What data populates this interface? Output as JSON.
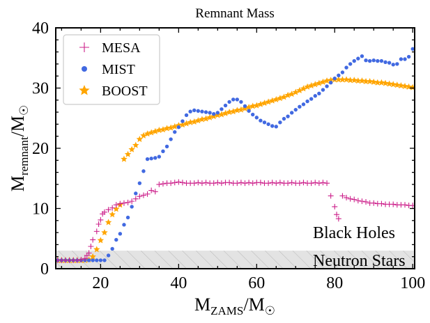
{
  "chart_data": {
    "type": "scatter",
    "title": "Remnant Mass",
    "xlabel": {
      "base": "M",
      "sub": "ZAMS",
      "mid": "/M",
      "sub2": "☉"
    },
    "ylabel": {
      "base": "M",
      "sub": "remnant",
      "mid": "/M",
      "sub2": "☉"
    },
    "xlim": [
      8.5,
      100.5
    ],
    "ylim": [
      0,
      40
    ],
    "xticks": [
      20,
      40,
      60,
      80,
      100
    ],
    "yticks": [
      0,
      10,
      20,
      30,
      40
    ],
    "legend_position": "top-left",
    "annotations": {
      "bh": "Black Holes",
      "ns": "Neutron Stars"
    },
    "ns_band": [
      0,
      3
    ],
    "series": [
      {
        "name": "MESA",
        "marker": "plus",
        "color": "#cc1f8a",
        "points": [
          [
            9,
            1.4
          ],
          [
            10,
            1.4
          ],
          [
            11,
            1.4
          ],
          [
            12,
            1.4
          ],
          [
            13,
            1.4
          ],
          [
            14,
            1.4
          ],
          [
            15,
            1.5
          ],
          [
            16,
            1.7
          ],
          [
            16.5,
            2.2
          ],
          [
            17,
            2.6
          ],
          [
            17.5,
            3.7
          ],
          [
            18,
            4.8
          ],
          [
            19,
            6.2
          ],
          [
            19.5,
            7.4
          ],
          [
            20,
            8.1
          ],
          [
            20.5,
            9.1
          ],
          [
            21,
            9.4
          ],
          [
            22,
            9.8
          ],
          [
            23,
            10.1
          ],
          [
            24,
            10.6
          ],
          [
            25,
            10.8
          ],
          [
            26,
            10.9
          ],
          [
            27,
            11.0
          ],
          [
            28,
            11.2
          ],
          [
            29,
            11.6
          ],
          [
            30,
            12.0
          ],
          [
            31,
            12.2
          ],
          [
            32,
            12.4
          ],
          [
            33,
            13.0
          ],
          [
            34,
            12.8
          ],
          [
            35,
            14.0
          ],
          [
            36,
            14.1
          ],
          [
            37,
            14.2
          ],
          [
            38,
            14.2
          ],
          [
            39,
            14.3
          ],
          [
            40,
            14.4
          ],
          [
            41,
            14.3
          ],
          [
            42,
            14.2
          ],
          [
            43,
            14.2
          ],
          [
            44,
            14.2
          ],
          [
            45,
            14.3
          ],
          [
            46,
            14.2
          ],
          [
            47,
            14.3
          ],
          [
            48,
            14.2
          ],
          [
            49,
            14.2
          ],
          [
            50,
            14.3
          ],
          [
            51,
            14.2
          ],
          [
            52,
            14.3
          ],
          [
            53,
            14.3
          ],
          [
            54,
            14.2
          ],
          [
            55,
            14.2
          ],
          [
            56,
            14.3
          ],
          [
            57,
            14.2
          ],
          [
            58,
            14.3
          ],
          [
            59,
            14.2
          ],
          [
            60,
            14.3
          ],
          [
            61,
            14.3
          ],
          [
            62,
            14.2
          ],
          [
            63,
            14.2
          ],
          [
            64,
            14.3
          ],
          [
            65,
            14.2
          ],
          [
            66,
            14.3
          ],
          [
            67,
            14.2
          ],
          [
            68,
            14.2
          ],
          [
            69,
            14.3
          ],
          [
            70,
            14.2
          ],
          [
            71,
            14.2
          ],
          [
            72,
            14.3
          ],
          [
            73,
            14.2
          ],
          [
            74,
            14.2
          ],
          [
            75,
            14.3
          ],
          [
            76,
            14.2
          ],
          [
            77,
            14.3
          ],
          [
            78,
            14.2
          ],
          [
            79,
            12.1
          ],
          [
            80,
            10.3
          ],
          [
            80.5,
            9.0
          ],
          [
            81,
            8.3
          ],
          [
            82,
            12.1
          ],
          [
            83,
            11.8
          ],
          [
            84,
            11.6
          ],
          [
            85,
            11.5
          ],
          [
            86,
            11.3
          ],
          [
            87,
            11.2
          ],
          [
            88,
            11.1
          ],
          [
            89,
            10.9
          ],
          [
            90,
            10.9
          ],
          [
            91,
            10.8
          ],
          [
            92,
            10.8
          ],
          [
            93,
            10.7
          ],
          [
            94,
            10.7
          ],
          [
            95,
            10.7
          ],
          [
            96,
            10.6
          ],
          [
            97,
            10.6
          ],
          [
            98,
            10.6
          ],
          [
            99,
            10.5
          ],
          [
            100,
            10.5
          ]
        ]
      },
      {
        "name": "MIST",
        "marker": "circle",
        "color": "#4169e1",
        "points": [
          [
            9,
            1.4
          ],
          [
            10,
            1.4
          ],
          [
            11,
            1.4
          ],
          [
            12,
            1.4
          ],
          [
            13,
            1.4
          ],
          [
            14,
            1.4
          ],
          [
            15,
            1.4
          ],
          [
            16,
            1.4
          ],
          [
            17,
            1.4
          ],
          [
            18,
            1.4
          ],
          [
            19,
            1.4
          ],
          [
            20,
            1.4
          ],
          [
            21,
            1.4
          ],
          [
            22,
            2.2
          ],
          [
            23,
            3.3
          ],
          [
            24,
            4.8
          ],
          [
            25,
            5.8
          ],
          [
            26,
            7.3
          ],
          [
            27,
            8.5
          ],
          [
            28,
            10.3
          ],
          [
            29,
            12.5
          ],
          [
            30,
            14.2
          ],
          [
            31,
            16.2
          ],
          [
            32,
            18.2
          ],
          [
            33,
            18.3
          ],
          [
            34,
            18.4
          ],
          [
            35,
            18.6
          ],
          [
            36,
            19.5
          ],
          [
            37,
            20.3
          ],
          [
            38,
            21.5
          ],
          [
            39,
            22.7
          ],
          [
            40,
            23.5
          ],
          [
            41,
            24.5
          ],
          [
            42,
            25.5
          ],
          [
            43,
            26.1
          ],
          [
            44,
            26.3
          ],
          [
            45,
            26.2
          ],
          [
            46,
            26.1
          ],
          [
            47,
            26.0
          ],
          [
            48,
            25.9
          ],
          [
            49,
            25.7
          ],
          [
            50,
            25.9
          ],
          [
            51,
            26.5
          ],
          [
            52,
            27.1
          ],
          [
            53,
            27.7
          ],
          [
            54,
            28.1
          ],
          [
            55,
            28.1
          ],
          [
            56,
            27.7
          ],
          [
            57,
            27.0
          ],
          [
            58,
            26.2
          ],
          [
            59,
            25.6
          ],
          [
            60,
            25.1
          ],
          [
            61,
            24.6
          ],
          [
            62,
            24.3
          ],
          [
            63,
            24.0
          ],
          [
            64,
            23.7
          ],
          [
            65,
            23.6
          ],
          [
            66,
            24.3
          ],
          [
            67,
            24.9
          ],
          [
            68,
            25.3
          ],
          [
            69,
            25.9
          ],
          [
            70,
            26.4
          ],
          [
            71,
            26.9
          ],
          [
            72,
            27.3
          ],
          [
            73,
            27.8
          ],
          [
            74,
            28.2
          ],
          [
            75,
            28.7
          ],
          [
            76,
            29.1
          ],
          [
            77,
            29.7
          ],
          [
            78,
            30.3
          ],
          [
            79,
            30.9
          ],
          [
            80,
            31.6
          ],
          [
            81,
            32.1
          ],
          [
            82,
            32.6
          ],
          [
            83,
            33.4
          ],
          [
            84,
            34.0
          ],
          [
            85,
            34.5
          ],
          [
            86,
            34.9
          ],
          [
            87,
            35.3
          ],
          [
            88,
            34.6
          ],
          [
            89,
            34.5
          ],
          [
            90,
            34.6
          ],
          [
            91,
            34.5
          ],
          [
            92,
            34.5
          ],
          [
            93,
            34.3
          ],
          [
            94,
            34.2
          ],
          [
            95,
            33.9
          ],
          [
            96,
            34.0
          ],
          [
            97,
            34.8
          ],
          [
            98,
            34.8
          ],
          [
            99,
            35.2
          ],
          [
            100,
            36.5
          ]
        ]
      },
      {
        "name": "BOOST",
        "marker": "star",
        "color": "#ffa500",
        "points": [
          [
            9,
            1.4
          ],
          [
            10,
            1.4
          ],
          [
            11,
            1.4
          ],
          [
            12,
            1.4
          ],
          [
            13,
            1.4
          ],
          [
            14,
            1.4
          ],
          [
            15,
            1.4
          ],
          [
            16,
            1.4
          ],
          [
            17,
            1.5
          ],
          [
            18,
            2.0
          ],
          [
            19,
            3.2
          ],
          [
            20,
            4.7
          ],
          [
            21,
            6.0
          ],
          [
            22,
            7.7
          ],
          [
            23,
            9.0
          ],
          [
            24,
            9.9
          ],
          [
            25,
            10.6
          ],
          [
            26,
            18.2
          ],
          [
            27,
            19.0
          ],
          [
            28,
            19.8
          ],
          [
            29,
            20.5
          ],
          [
            30,
            21.5
          ],
          [
            31,
            22.1
          ],
          [
            32,
            22.4
          ],
          [
            33,
            22.6
          ],
          [
            34,
            22.8
          ],
          [
            35,
            23.0
          ],
          [
            36,
            23.1
          ],
          [
            37,
            23.3
          ],
          [
            38,
            23.4
          ],
          [
            39,
            23.6
          ],
          [
            40,
            23.8
          ],
          [
            41,
            23.9
          ],
          [
            42,
            24.1
          ],
          [
            43,
            24.3
          ],
          [
            44,
            24.4
          ],
          [
            45,
            24.6
          ],
          [
            46,
            24.8
          ],
          [
            47,
            24.9
          ],
          [
            48,
            25.1
          ],
          [
            49,
            25.3
          ],
          [
            50,
            25.5
          ],
          [
            51,
            25.6
          ],
          [
            52,
            25.8
          ],
          [
            53,
            26.0
          ],
          [
            54,
            26.1
          ],
          [
            55,
            26.3
          ],
          [
            56,
            26.4
          ],
          [
            57,
            26.6
          ],
          [
            58,
            26.8
          ],
          [
            59,
            27.0
          ],
          [
            60,
            27.1
          ],
          [
            61,
            27.3
          ],
          [
            62,
            27.5
          ],
          [
            63,
            27.7
          ],
          [
            64,
            27.9
          ],
          [
            65,
            28.1
          ],
          [
            66,
            28.3
          ],
          [
            67,
            28.5
          ],
          [
            68,
            28.8
          ],
          [
            69,
            29.0
          ],
          [
            70,
            29.3
          ],
          [
            71,
            29.6
          ],
          [
            72,
            29.9
          ],
          [
            73,
            30.2
          ],
          [
            74,
            30.4
          ],
          [
            75,
            30.6
          ],
          [
            76,
            30.8
          ],
          [
            77,
            31.0
          ],
          [
            78,
            31.2
          ],
          [
            79,
            31.3
          ],
          [
            80,
            31.4
          ],
          [
            81,
            31.4
          ],
          [
            82,
            31.4
          ],
          [
            83,
            31.4
          ],
          [
            84,
            31.3
          ],
          [
            85,
            31.3
          ],
          [
            86,
            31.2
          ],
          [
            87,
            31.2
          ],
          [
            88,
            31.1
          ],
          [
            89,
            31.1
          ],
          [
            90,
            31.0
          ],
          [
            91,
            30.9
          ],
          [
            92,
            30.9
          ],
          [
            93,
            30.8
          ],
          [
            94,
            30.7
          ],
          [
            95,
            30.6
          ],
          [
            96,
            30.5
          ],
          [
            97,
            30.4
          ],
          [
            98,
            30.3
          ],
          [
            99,
            30.2
          ],
          [
            100,
            30.1
          ]
        ]
      }
    ]
  }
}
